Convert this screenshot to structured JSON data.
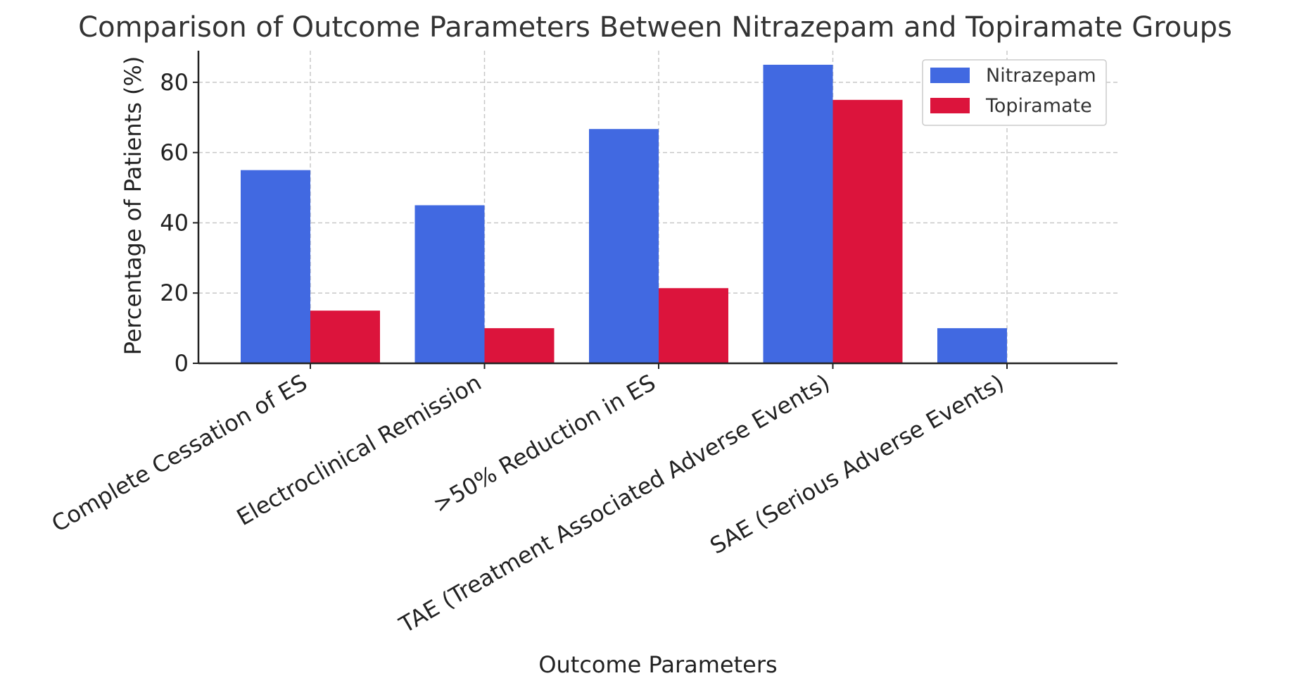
{
  "chart_data": {
    "type": "bar",
    "title": "Comparison of Outcome Parameters Between Nitrazepam and Topiramate Groups",
    "xlabel": "Outcome Parameters",
    "ylabel": "Percentage of Patients (%)",
    "ylim": [
      0,
      89
    ],
    "yticks": [
      0,
      20,
      40,
      60,
      80
    ],
    "grid": true,
    "legend_position": "top-right",
    "categories": [
      "Complete Cessation of ES",
      "Electroclinical Remission",
      ">50% Reduction in ES",
      "TAE (Treatment Associated Adverse Events)",
      "SAE (Serious Adverse Events)"
    ],
    "series": [
      {
        "name": "Nitrazepam",
        "color": "#4169E1",
        "values": [
          55,
          45,
          66.7,
          85,
          10
        ]
      },
      {
        "name": "Topiramate",
        "color": "#DC143C",
        "values": [
          15,
          10,
          21.4,
          75,
          0
        ]
      }
    ]
  }
}
